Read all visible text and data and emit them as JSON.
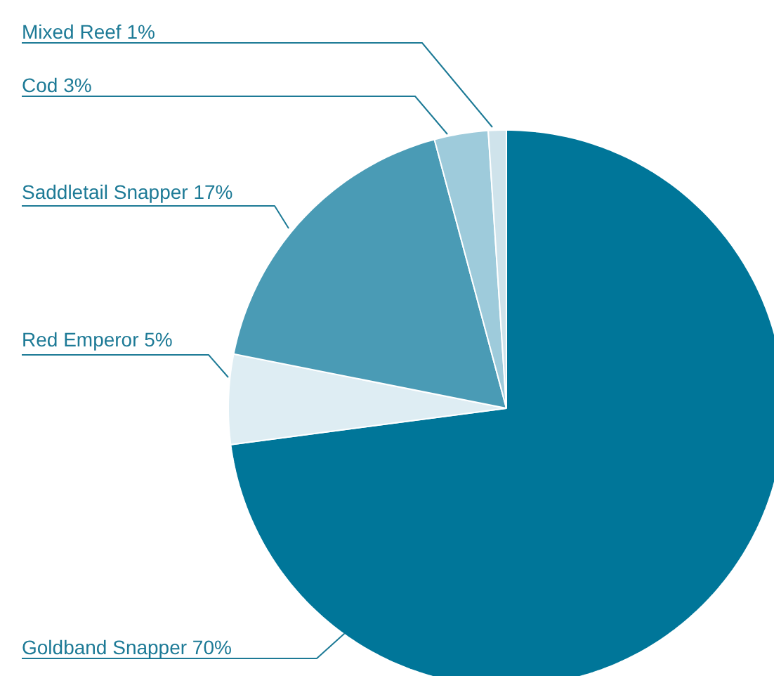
{
  "chart_data": {
    "type": "pie",
    "categories": [
      "Goldband Snapper",
      "Red Emperor",
      "Saddletail Snapper",
      "Cod",
      "Mixed Reef"
    ],
    "values": [
      70,
      5,
      17,
      3,
      1
    ],
    "value_labels": [
      "70%",
      "5%",
      "17%",
      "3%",
      "1%"
    ],
    "colors": [
      "#007699",
      "#deedf3",
      "#4a9bb5",
      "#9ecbdb",
      "#cfe3eb"
    ]
  }
}
